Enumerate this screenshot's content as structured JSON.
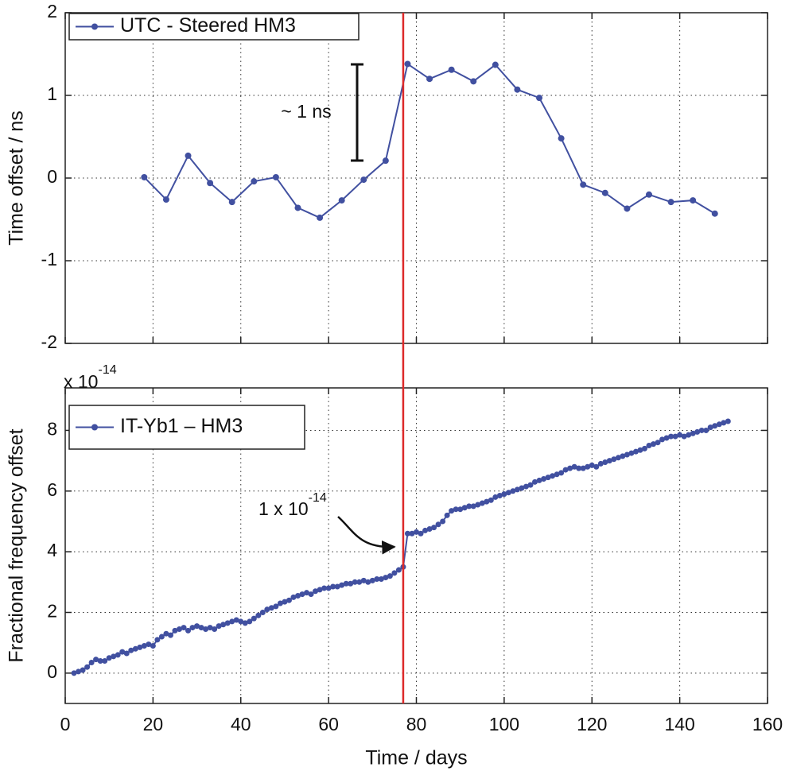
{
  "chart_data": [
    {
      "type": "line",
      "ylabel": "Time offset / ns",
      "legend": "upper left",
      "xlim": [
        0,
        160
      ],
      "xticks": [
        0,
        20,
        40,
        60,
        80,
        100,
        120,
        140,
        160
      ],
      "ylim": [
        -2,
        2
      ],
      "yticks": [
        -2,
        -1,
        0,
        1,
        2
      ],
      "grid": true,
      "x": [
        18,
        23,
        28,
        33,
        38,
        43,
        48,
        53,
        58,
        63,
        68,
        73,
        78,
        83,
        88,
        93,
        98,
        103,
        108,
        113,
        118,
        123,
        128,
        133,
        138,
        143,
        148
      ],
      "series": [
        {
          "name": "UTC - Steered HM3",
          "color": "#4150a0",
          "values": [
            0.01,
            -0.26,
            0.27,
            -0.06,
            -0.29,
            -0.04,
            0.01,
            -0.36,
            -0.48,
            -0.27,
            -0.02,
            0.21,
            1.38,
            1.2,
            1.31,
            1.17,
            1.37,
            1.07,
            0.97,
            0.48,
            -0.08,
            -0.18,
            -0.37,
            -0.2,
            -0.29,
            -0.27,
            -0.43
          ]
        }
      ],
      "annotation": "~ 1 ns",
      "vline": {
        "x": 77,
        "color": "#dd2a2a"
      }
    },
    {
      "type": "line",
      "ylabel": "Fractional frequency offset",
      "xlabel": "Time / days",
      "legend": "upper left",
      "y_multiplier": {
        "base": "x 10",
        "exponent": "-14"
      },
      "xlim": [
        0,
        160
      ],
      "xticks": [
        0,
        20,
        40,
        60,
        80,
        100,
        120,
        140,
        160
      ],
      "ylim": [
        -1,
        9.4
      ],
      "yticks": [
        0,
        2,
        4,
        6,
        8
      ],
      "grid": true,
      "x": [
        2,
        3,
        4,
        5,
        6,
        7,
        8,
        9,
        10,
        11,
        12,
        13,
        14,
        15,
        16,
        17,
        18,
        19,
        20,
        21,
        22,
        23,
        24,
        25,
        26,
        27,
        28,
        29,
        30,
        31,
        32,
        33,
        34,
        35,
        36,
        37,
        38,
        39,
        40,
        41,
        42,
        43,
        44,
        45,
        46,
        47,
        48,
        49,
        50,
        51,
        52,
        53,
        54,
        55,
        56,
        57,
        58,
        59,
        60,
        61,
        62,
        63,
        64,
        65,
        66,
        67,
        68,
        69,
        70,
        71,
        72,
        73,
        74,
        75,
        76,
        77,
        78,
        79,
        80,
        81,
        82,
        83,
        84,
        85,
        86,
        87,
        88,
        89,
        90,
        91,
        92,
        93,
        94,
        95,
        96,
        97,
        98,
        99,
        100,
        101,
        102,
        103,
        104,
        105,
        106,
        107,
        108,
        109,
        110,
        111,
        112,
        113,
        114,
        115,
        116,
        117,
        118,
        119,
        120,
        121,
        122,
        123,
        124,
        125,
        126,
        127,
        128,
        129,
        130,
        131,
        132,
        133,
        134,
        135,
        136,
        137,
        138,
        139,
        140,
        141,
        142,
        143,
        144,
        145,
        146,
        147,
        148,
        149,
        150,
        151
      ],
      "series": [
        {
          "name": "IT-Yb1 – HM3",
          "color": "#4150a0",
          "values": [
            0.0,
            0.05,
            0.1,
            0.2,
            0.35,
            0.45,
            0.4,
            0.4,
            0.5,
            0.55,
            0.6,
            0.7,
            0.65,
            0.75,
            0.8,
            0.85,
            0.9,
            0.95,
            0.9,
            1.1,
            1.2,
            1.3,
            1.25,
            1.4,
            1.45,
            1.5,
            1.4,
            1.5,
            1.55,
            1.5,
            1.45,
            1.5,
            1.45,
            1.55,
            1.6,
            1.65,
            1.7,
            1.75,
            1.7,
            1.65,
            1.7,
            1.8,
            1.9,
            2.0,
            2.1,
            2.15,
            2.2,
            2.3,
            2.35,
            2.4,
            2.5,
            2.55,
            2.6,
            2.65,
            2.6,
            2.7,
            2.75,
            2.8,
            2.8,
            2.85,
            2.85,
            2.9,
            2.95,
            2.95,
            3.0,
            3.0,
            3.05,
            3.0,
            3.05,
            3.1,
            3.1,
            3.15,
            3.2,
            3.3,
            3.4,
            3.5,
            4.6,
            4.6,
            4.65,
            4.6,
            4.7,
            4.75,
            4.8,
            4.9,
            5.0,
            5.2,
            5.35,
            5.4,
            5.4,
            5.45,
            5.5,
            5.5,
            5.55,
            5.6,
            5.65,
            5.7,
            5.8,
            5.85,
            5.9,
            5.95,
            6.0,
            6.05,
            6.1,
            6.15,
            6.2,
            6.3,
            6.35,
            6.4,
            6.45,
            6.5,
            6.55,
            6.6,
            6.7,
            6.75,
            6.8,
            6.75,
            6.75,
            6.8,
            6.85,
            6.8,
            6.9,
            6.95,
            7.0,
            7.05,
            7.1,
            7.15,
            7.2,
            7.25,
            7.3,
            7.35,
            7.4,
            7.5,
            7.55,
            7.6,
            7.7,
            7.75,
            7.8,
            7.8,
            7.85,
            7.8,
            7.85,
            7.9,
            7.95,
            8.0,
            8.0,
            8.1,
            8.15,
            8.2,
            8.25,
            8.3
          ]
        }
      ],
      "annotation": {
        "base": "1 x 10",
        "exponent": "-14"
      }
    }
  ]
}
